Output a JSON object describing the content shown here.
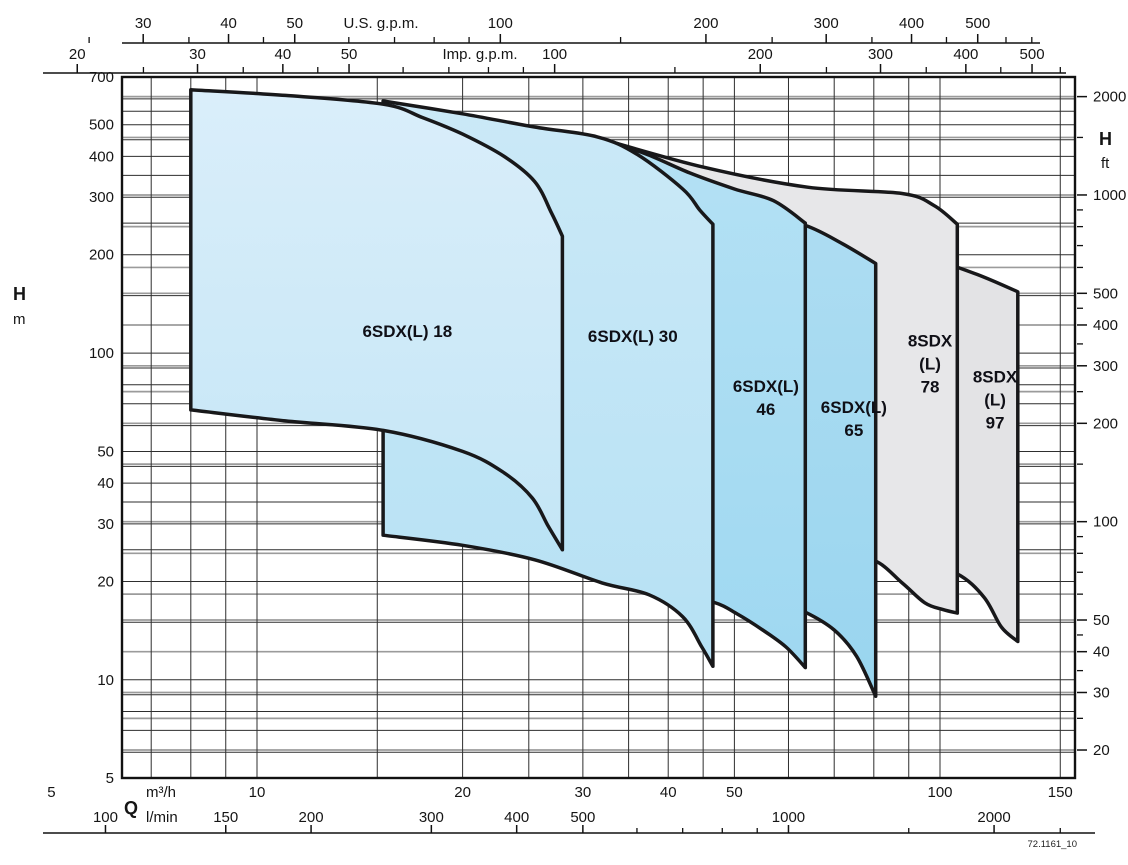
{
  "figure": {
    "ref_code": "72.1161_10"
  },
  "colors": {
    "envelope_stroke": "#18181a",
    "grid_black": "#2e2e2e",
    "grid_gray": "#9b9b9b",
    "frame": "#111111",
    "label_text": "#0f0f16"
  },
  "chart_data": {
    "type": "area",
    "subtype": "pump-range-envelopes-log-log",
    "title": "",
    "x_axis": {
      "quantity_letter": "Q",
      "primary_unit": "m³/h",
      "range_m3h": [
        6.35,
        158
      ],
      "scales": [
        {
          "id": "us_gpm",
          "label": "U.S. g.p.m.",
          "per_m3h": 4.4029,
          "labeled_ticks": [
            30,
            40,
            50,
            100,
            200,
            300,
            400,
            500
          ],
          "minor_ticks": [
            25,
            35,
            45,
            60,
            70,
            80,
            90,
            150,
            250,
            350,
            450,
            550,
            600
          ],
          "position": "top-outer"
        },
        {
          "id": "imp_gpm",
          "label": "Imp. g.p.m.",
          "per_m3h": 3.6662,
          "labeled_ticks": [
            20,
            30,
            40,
            50,
            100,
            200,
            300,
            400,
            500
          ],
          "minor_ticks": [
            25,
            35,
            45,
            60,
            70,
            80,
            90,
            150,
            250,
            350,
            450,
            550
          ],
          "position": "top-inner"
        },
        {
          "id": "m3h",
          "label": "m³/h",
          "per_m3h": 1,
          "labeled_ticks": [
            5,
            10,
            20,
            30,
            40,
            50,
            100,
            150
          ],
          "minor_ticks": [],
          "position": "bottom-inner"
        },
        {
          "id": "lmin",
          "label": "l/min",
          "per_m3h": 16.667,
          "labeled_ticks": [
            100,
            150,
            200,
            300,
            400,
            500,
            1000,
            2000
          ],
          "minor_ticks": [
            600,
            700,
            800,
            900,
            1500,
            2500
          ],
          "position": "bottom-outer"
        }
      ]
    },
    "y_axis": {
      "quantity_letter": "H",
      "range_m": [
        5,
        700
      ],
      "scales": [
        {
          "id": "h_m",
          "label": "H",
          "unit": "m",
          "labeled_ticks": [
            700,
            500,
            400,
            300,
            200,
            100,
            50,
            40,
            30,
            20,
            10,
            5
          ],
          "position": "left"
        },
        {
          "id": "h_ft",
          "label": "H",
          "unit": "ft",
          "m_per_unit": 0.3048,
          "labeled_ticks": [
            2000,
            1000,
            500,
            400,
            300,
            200,
            100,
            50,
            40,
            30,
            20
          ],
          "minor_ticks": [
            1500,
            900,
            800,
            700,
            600,
            450,
            350,
            250,
            150,
            90,
            80,
            70,
            60,
            45,
            35,
            25
          ],
          "position": "right"
        }
      ]
    },
    "grid": {
      "horizontal_black_m": [
        600,
        550,
        500,
        450,
        400,
        350,
        300,
        250,
        200,
        150,
        100,
        90,
        80,
        70,
        60,
        50,
        45,
        40,
        35,
        30,
        25,
        20,
        15,
        10,
        9,
        8,
        7,
        6
      ],
      "horizontal_gray_ft": [
        2000,
        1500,
        1000,
        800,
        600,
        500,
        400,
        300,
        250,
        200,
        150,
        100,
        80,
        60,
        50,
        40,
        30,
        25,
        20
      ],
      "vertical_black_m3h": [
        7,
        8,
        9,
        10,
        15,
        20,
        25,
        30,
        35,
        40,
        45,
        50,
        60,
        70,
        80,
        90,
        100,
        150
      ]
    },
    "series": [
      {
        "name": "6SDX(L) 18",
        "label_lines": [
          "6SDX(L) 18"
        ],
        "label_q": 16.6,
        "label_h": 117,
        "fill": [
          "#daeefa",
          "#c4e6f6"
        ],
        "q_min": 8,
        "q_max": 28,
        "top_curve_qh": [
          [
            8,
            640
          ],
          [
            11,
            615
          ],
          [
            15.3,
            578
          ],
          [
            17.5,
            525
          ],
          [
            20,
            468
          ],
          [
            23,
            400
          ],
          [
            25.5,
            335
          ],
          [
            27,
            268
          ],
          [
            28,
            228
          ]
        ],
        "bottom_curve_qh": [
          [
            8,
            67
          ],
          [
            11,
            62
          ],
          [
            15.3,
            58
          ],
          [
            20,
            50
          ],
          [
            23,
            43
          ],
          [
            25.3,
            36
          ],
          [
            26.7,
            29.5
          ],
          [
            28,
            25
          ]
        ]
      },
      {
        "name": "6SDX(L) 30",
        "label_lines": [
          "6SDX(L) 30"
        ],
        "label_q": 35.5,
        "label_h": 113,
        "fill": [
          "#cbe9f7",
          "#b6e1f4"
        ],
        "q_min": 15.3,
        "q_max": 46.5,
        "top_curve_qh": [
          [
            15.3,
            591
          ],
          [
            20,
            540
          ],
          [
            25.5,
            492
          ],
          [
            31.5,
            459
          ],
          [
            36,
            406
          ],
          [
            42,
            318
          ],
          [
            44.5,
            274
          ],
          [
            46.5,
            248
          ]
        ],
        "bottom_curve_qh": [
          [
            15.3,
            27.7
          ],
          [
            20,
            25.8
          ],
          [
            25.5,
            23.3
          ],
          [
            32,
            19.8
          ],
          [
            37.5,
            18.2
          ],
          [
            42,
            15.6
          ],
          [
            44.8,
            12.6
          ],
          [
            46.5,
            11
          ]
        ]
      },
      {
        "name": "6SDX(L) 46",
        "label_lines": [
          "6SDX(L)",
          "46"
        ],
        "label_q": 55.6,
        "label_h": 73,
        "fill": [
          "#b4e1f4",
          "#9fd8f1"
        ],
        "q_min": 31.5,
        "q_max": 63.5,
        "top_curve_qh": [
          [
            31.5,
            455
          ],
          [
            37,
            408
          ],
          [
            43,
            356
          ],
          [
            50,
            318
          ],
          [
            57,
            293
          ],
          [
            63.5,
            250
          ]
        ],
        "bottom_curve_qh": [
          [
            31.5,
            20.6
          ],
          [
            40,
            18.4
          ],
          [
            46.5,
            17.3
          ],
          [
            50.5,
            15.9
          ],
          [
            55,
            14.2
          ],
          [
            59.5,
            12.6
          ],
          [
            63.5,
            10.9
          ]
        ]
      },
      {
        "name": "6SDX(L) 65",
        "label_lines": [
          "6SDX(L)",
          "65"
        ],
        "label_q": 74.8,
        "label_h": 63,
        "fill": [
          "#aeddf2",
          "#99d5ef"
        ],
        "q_min": 42.5,
        "q_max": 80.5,
        "top_curve_qh": [
          [
            42.5,
            298
          ],
          [
            53,
            270
          ],
          [
            63.5,
            246
          ],
          [
            72,
            216
          ],
          [
            80.5,
            188
          ]
        ],
        "bottom_curve_qh": [
          [
            42.5,
            19.6
          ],
          [
            56,
            17.8
          ],
          [
            63.5,
            16.1
          ],
          [
            70,
            14.2
          ],
          [
            75.5,
            11.8
          ],
          [
            80.5,
            8.9
          ]
        ]
      },
      {
        "name": "8SDX(L) 78",
        "label_lines": [
          "8SDX",
          "(L)",
          "78"
        ],
        "label_q": 96.7,
        "label_h": 93,
        "fill": [
          "#e7e7e9",
          "#e7e7e9"
        ],
        "q_min": 31.5,
        "q_max": 106,
        "top_curve_qh": [
          [
            31.5,
            456
          ],
          [
            45,
            371
          ],
          [
            64,
            322
          ],
          [
            88,
            308
          ],
          [
            98,
            283
          ],
          [
            106,
            248
          ]
        ],
        "bottom_curve_qh": [
          [
            31.5,
            26
          ],
          [
            50,
            24.6
          ],
          [
            70,
            23.7
          ],
          [
            80,
            23.2
          ],
          [
            88,
            19.8
          ],
          [
            95,
            17.2
          ],
          [
            101,
            16.4
          ],
          [
            106,
            16
          ]
        ]
      },
      {
        "name": "8SDX(L) 97",
        "label_lines": [
          "8SDX",
          "(L)",
          "97"
        ],
        "label_q": 120.4,
        "label_h": 72,
        "fill": [
          "#e3e3e5",
          "#e3e3e5"
        ],
        "q_min": 37,
        "q_max": 130,
        "top_curve_qh": [
          [
            37,
            378
          ],
          [
            60,
            299
          ],
          [
            80,
            236
          ],
          [
            93,
            203
          ],
          [
            115,
            172
          ],
          [
            130,
            154
          ]
        ],
        "bottom_curve_qh": [
          [
            37,
            25
          ],
          [
            70,
            24
          ],
          [
            92,
            23
          ],
          [
            106,
            21.1
          ],
          [
            116,
            17.9
          ],
          [
            123,
            14.5
          ],
          [
            130,
            13.1
          ]
        ]
      }
    ]
  }
}
